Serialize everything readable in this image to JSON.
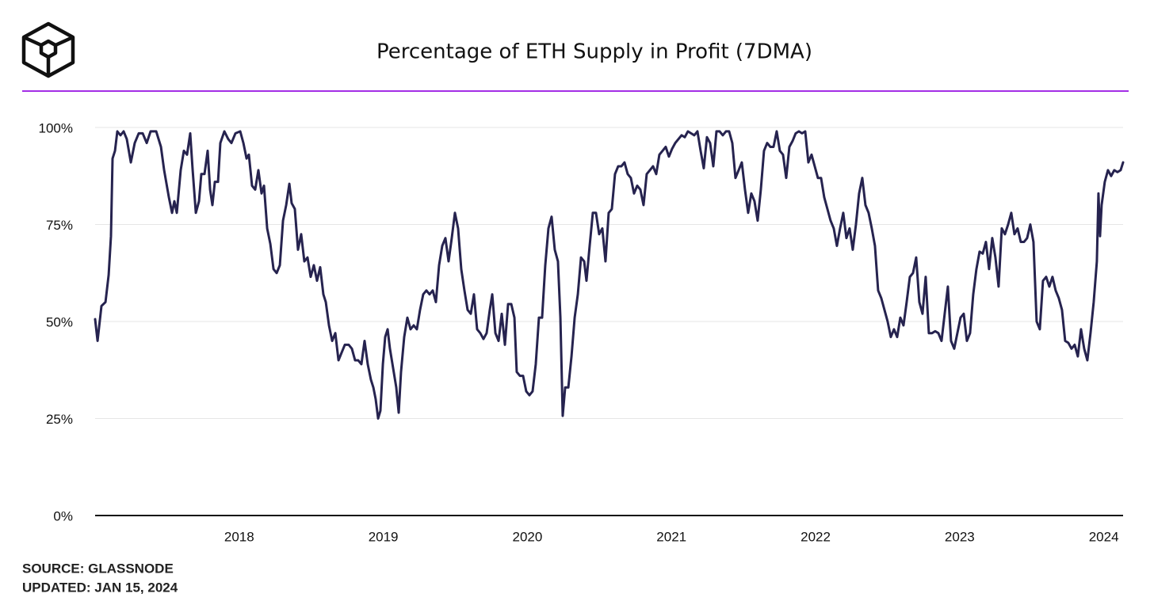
{
  "chart_data": {
    "type": "line",
    "title": "Percentage of ETH Supply in Profit (7DMA)",
    "source": "SOURCE: GLASSNODE",
    "updated": "UPDATED: JAN 15, 2024",
    "color": "#26234f",
    "grid": true,
    "xlim": [
      2017,
      2024.134
    ],
    "xticks": [
      2018,
      2019,
      2020,
      2021,
      2022,
      2023,
      2024
    ],
    "ylim": [
      0,
      100
    ],
    "yticks": [
      {
        "value": 0,
        "label": "0%"
      },
      {
        "value": 25,
        "label": "25%"
      },
      {
        "value": 50,
        "label": "50%"
      },
      {
        "value": 75,
        "label": "75%"
      },
      {
        "value": 100,
        "label": "100%"
      }
    ],
    "x": [
      2017.0,
      2017.017,
      2017.044,
      2017.072,
      2017.094,
      2017.11,
      2017.121,
      2017.138,
      2017.154,
      2017.176,
      2017.198,
      2017.22,
      2017.248,
      2017.275,
      2017.303,
      2017.33,
      2017.358,
      2017.385,
      2017.424,
      2017.457,
      2017.479,
      2017.512,
      2017.534,
      2017.55,
      2017.567,
      2017.594,
      2017.616,
      2017.638,
      2017.66,
      2017.677,
      2017.699,
      2017.721,
      2017.737,
      2017.759,
      2017.781,
      2017.798,
      2017.814,
      2017.831,
      2017.853,
      2017.869,
      2017.897,
      2017.924,
      2017.946,
      2017.974,
      2018.007,
      2018.029,
      2018.051,
      2018.067,
      2018.089,
      2018.111,
      2018.133,
      2018.155,
      2018.172,
      2018.194,
      2018.216,
      2018.238,
      2018.26,
      2018.282,
      2018.304,
      2018.326,
      2018.348,
      2018.364,
      2018.386,
      2018.408,
      2018.43,
      2018.452,
      2018.474,
      2018.496,
      2018.518,
      2018.54,
      2018.562,
      2018.584,
      2018.601,
      2018.623,
      2018.645,
      2018.667,
      2018.689,
      2018.711,
      2018.733,
      2018.76,
      2018.782,
      2018.804,
      2018.826,
      2018.848,
      2018.87,
      2018.892,
      2018.914,
      2018.931,
      2018.947,
      2018.964,
      2018.98,
      2018.997,
      2019.013,
      2019.03,
      2019.046,
      2019.068,
      2019.09,
      2019.107,
      2019.123,
      2019.145,
      2019.167,
      2019.189,
      2019.211,
      2019.233,
      2019.255,
      2019.277,
      2019.299,
      2019.321,
      2019.343,
      2019.365,
      2019.387,
      2019.409,
      2019.431,
      2019.453,
      2019.475,
      2019.497,
      2019.519,
      2019.541,
      2019.563,
      2019.585,
      2019.607,
      2019.629,
      2019.651,
      2019.673,
      2019.695,
      2019.717,
      2019.739,
      2019.756,
      2019.778,
      2019.8,
      2019.822,
      2019.844,
      2019.866,
      2019.888,
      2019.91,
      2019.926,
      2019.948,
      2019.97,
      2019.992,
      2020.014,
      2020.036,
      2020.058,
      2020.08,
      2020.102,
      2020.124,
      2020.146,
      2020.168,
      2020.19,
      2020.212,
      2020.229,
      2020.245,
      2020.262,
      2020.284,
      2020.306,
      2020.328,
      2020.35,
      2020.372,
      2020.394,
      2020.41,
      2020.432,
      2020.454,
      2020.476,
      2020.498,
      2020.52,
      2020.542,
      2020.564,
      2020.586,
      2020.608,
      2020.63,
      2020.652,
      2020.674,
      2020.696,
      2020.718,
      2020.74,
      2020.762,
      2020.784,
      2020.806,
      2020.828,
      2020.85,
      2020.872,
      2020.894,
      2020.916,
      2020.938,
      2020.96,
      2020.982,
      2021.004,
      2021.026,
      2021.048,
      2021.07,
      2021.092,
      2021.114,
      2021.136,
      2021.158,
      2021.18,
      2021.202,
      2021.224,
      2021.246,
      2021.268,
      2021.29,
      2021.312,
      2021.334,
      2021.356,
      2021.378,
      2021.4,
      2021.422,
      2021.444,
      2021.466,
      2021.488,
      2021.51,
      2021.532,
      2021.554,
      2021.576,
      2021.598,
      2021.62,
      2021.642,
      2021.664,
      2021.686,
      2021.708,
      2021.73,
      2021.752,
      2021.774,
      2021.796,
      2021.818,
      2021.84,
      2021.862,
      2021.884,
      2021.906,
      2021.928,
      2021.95,
      2021.972,
      2021.994,
      2022.016,
      2022.038,
      2022.06,
      2022.082,
      2022.104,
      2022.126,
      2022.148,
      2022.17,
      2022.192,
      2022.214,
      2022.236,
      2022.258,
      2022.28,
      2022.302,
      2022.324,
      2022.346,
      2022.368,
      2022.39,
      2022.412,
      2022.434,
      2022.456,
      2022.478,
      2022.5,
      2022.522,
      2022.544,
      2022.566,
      2022.588,
      2022.61,
      2022.632,
      2022.654,
      2022.676,
      2022.698,
      2022.72,
      2022.742,
      2022.764,
      2022.786,
      2022.808,
      2022.83,
      2022.852,
      2022.874,
      2022.896,
      2022.918,
      2022.94,
      2022.962,
      2022.984,
      2023.006,
      2023.028,
      2023.05,
      2023.072,
      2023.094,
      2023.116,
      2023.138,
      2023.16,
      2023.182,
      2023.204,
      2023.226,
      2023.248,
      2023.27,
      2023.292,
      2023.314,
      2023.336,
      2023.358,
      2023.38,
      2023.402,
      2023.424,
      2023.446,
      2023.468,
      2023.49,
      2023.512,
      2023.534,
      2023.556,
      2023.578,
      2023.6,
      2023.622,
      2023.644,
      2023.666,
      2023.688,
      2023.71,
      2023.732,
      2023.754,
      2023.776,
      2023.798,
      2023.82,
      2023.842,
      2023.864,
      2023.886,
      2023.908,
      2023.93,
      2023.952,
      2023.963,
      2023.974,
      2023.985,
      2024.007,
      2024.029,
      2024.051,
      2024.073,
      2024.095,
      2024.117,
      2024.134
    ],
    "values": [
      50.6,
      45,
      54,
      55,
      62,
      72,
      92,
      94,
      99,
      98,
      99,
      97,
      91,
      96,
      98.5,
      98.5,
      96,
      99,
      99,
      95,
      89,
      82,
      78,
      81,
      78,
      89,
      94,
      93,
      98.5,
      89,
      78,
      81,
      88,
      88,
      94,
      84,
      80,
      86,
      86,
      96,
      99,
      97,
      96,
      98.5,
      99,
      96,
      92,
      93,
      85,
      84,
      89,
      83,
      85,
      74,
      70,
      63.5,
      62.5,
      64.5,
      76,
      80,
      85.5,
      80.5,
      79,
      68.5,
      72.5,
      65.5,
      66.5,
      61.5,
      64.5,
      60.5,
      64,
      57,
      55,
      49,
      45,
      47,
      40,
      42,
      44,
      44,
      43,
      40,
      40,
      39,
      45,
      39,
      35,
      33,
      30,
      25,
      27,
      39,
      46,
      48,
      43,
      38,
      33,
      26.5,
      37,
      46,
      51,
      48,
      49,
      48,
      53,
      57,
      58,
      57,
      58,
      55,
      64.5,
      69.5,
      71.5,
      65.5,
      71.5,
      78,
      74,
      63.5,
      58,
      53,
      52,
      57,
      48,
      47,
      45.5,
      47,
      53,
      57,
      47,
      45,
      52,
      44,
      54.5,
      54.5,
      51,
      37,
      36,
      36,
      32,
      31,
      32,
      39,
      51,
      51,
      64.5,
      74,
      77,
      68.5,
      65.5,
      51,
      25.7,
      33,
      33,
      41,
      51,
      57,
      66.5,
      65.5,
      60.5,
      69.5,
      78,
      78,
      72.5,
      74,
      65.5,
      78,
      79,
      88,
      90,
      90,
      91,
      88,
      87,
      83,
      85,
      84,
      80,
      88,
      89,
      90,
      88,
      93,
      94,
      95,
      92.5,
      94.5,
      96,
      97,
      98,
      97.5,
      99,
      98.5,
      98,
      99,
      94,
      89.5,
      97.5,
      96,
      90,
      99,
      99,
      98,
      99,
      99,
      96,
      87,
      89,
      91,
      84,
      78,
      83,
      81,
      76,
      84,
      94,
      96,
      95,
      95,
      99,
      94,
      93,
      87,
      95,
      96.5,
      98.5,
      99,
      98.5,
      99,
      91,
      93,
      90,
      87,
      87,
      82,
      79,
      76,
      74,
      69.5,
      74,
      78,
      71.5,
      74,
      68.5,
      75,
      83,
      87,
      80,
      78,
      74,
      69.5,
      58,
      56,
      53,
      50,
      46,
      48,
      46,
      51,
      49,
      55,
      61.5,
      62.5,
      66.5,
      55,
      52,
      61.5,
      47,
      47,
      47.5,
      47,
      45,
      52,
      59,
      45,
      43,
      47,
      51,
      52,
      45,
      47,
      57,
      63.5,
      68,
      67.5,
      70.5,
      63.5,
      71.5,
      66.5,
      59,
      74,
      72.5,
      75,
      78,
      72.5,
      74,
      70.5,
      70.5,
      71.5,
      75,
      70.5,
      50,
      48,
      60.5,
      61.5,
      59,
      61.5,
      58,
      56,
      53,
      45,
      44.5,
      43,
      44,
      41,
      48,
      43,
      40,
      47,
      55,
      65.5,
      83,
      72,
      80,
      86,
      89,
      87.5,
      89,
      88.5,
      89,
      91
    ]
  }
}
